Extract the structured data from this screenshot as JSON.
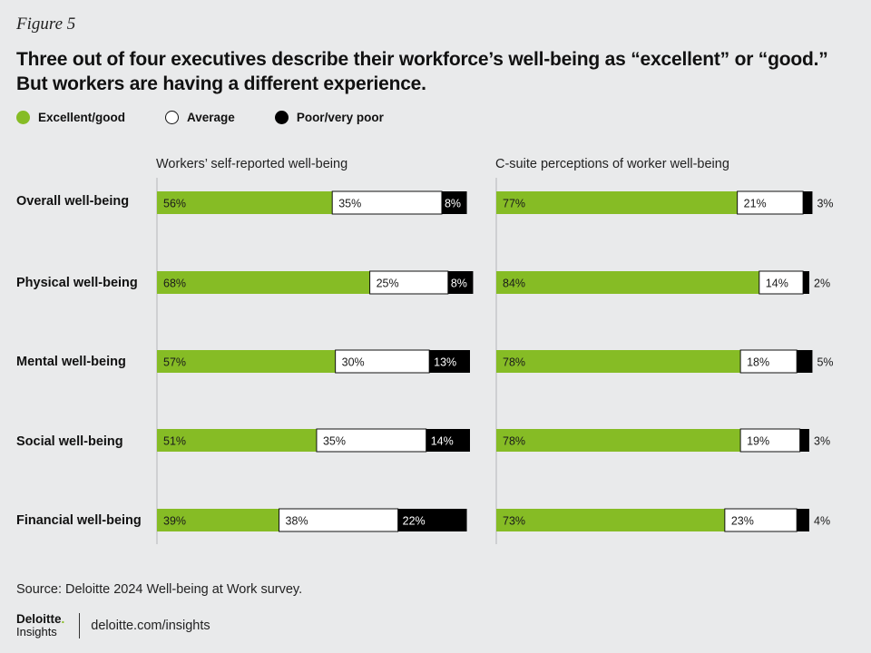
{
  "figure_label": "Figure 5",
  "title_lines": [
    "Three out of four executives describe their workforce’s well-being as “excellent” or “good.”",
    "But workers are having a different experience."
  ],
  "legend": [
    {
      "label": "Excellent/good",
      "color": "#86bc25"
    },
    {
      "label": "Average",
      "color": "#ffffff"
    },
    {
      "label": "Poor/very poor",
      "color": "#000000"
    }
  ],
  "panels": [
    {
      "title": "Workers’ self-reported well-being"
    },
    {
      "title": "C-suite perceptions of worker well-being"
    }
  ],
  "source": "Source: Deloitte 2024 Well-being at Work survey.",
  "brand": {
    "name": "Deloitte",
    "sub": "Insights",
    "url": "deloitte.com/insights"
  },
  "chart_data": {
    "type": "bar",
    "orientation": "horizontal",
    "stacked": true,
    "categories": [
      "Overall well-being",
      "Physical well-being",
      "Mental well-being",
      "Social well-being",
      "Financial well-being"
    ],
    "segments": [
      "Excellent/good",
      "Average",
      "Poor/very poor"
    ],
    "colors": [
      "#86bc25",
      "#ffffff",
      "#000000"
    ],
    "xlim": [
      0,
      100
    ],
    "unit": "%",
    "panels": [
      {
        "title": "Workers’ self-reported well-being",
        "values": [
          [
            56,
            35,
            8
          ],
          [
            68,
            25,
            8
          ],
          [
            57,
            30,
            13
          ],
          [
            51,
            35,
            14
          ],
          [
            39,
            38,
            22
          ]
        ],
        "labels": [
          [
            "56%",
            "35%",
            "8%"
          ],
          [
            "68%",
            "25%",
            "8%"
          ],
          [
            "57%",
            "30%",
            "13%"
          ],
          [
            "51%",
            "35%",
            "14%"
          ],
          [
            "39%",
            "38%",
            "22%"
          ]
        ]
      },
      {
        "title": "C-suite perceptions of worker well-being",
        "values": [
          [
            77,
            21,
            3
          ],
          [
            84,
            14,
            2
          ],
          [
            78,
            18,
            5
          ],
          [
            78,
            19,
            3
          ],
          [
            73,
            23,
            4
          ]
        ],
        "labels": [
          [
            "77%",
            "21%",
            "3%"
          ],
          [
            "84%",
            "14%",
            "2%"
          ],
          [
            "78%",
            "18%",
            "5%"
          ],
          [
            "78%",
            "19%",
            "3%"
          ],
          [
            "73%",
            "23%",
            "4%"
          ]
        ]
      }
    ]
  }
}
